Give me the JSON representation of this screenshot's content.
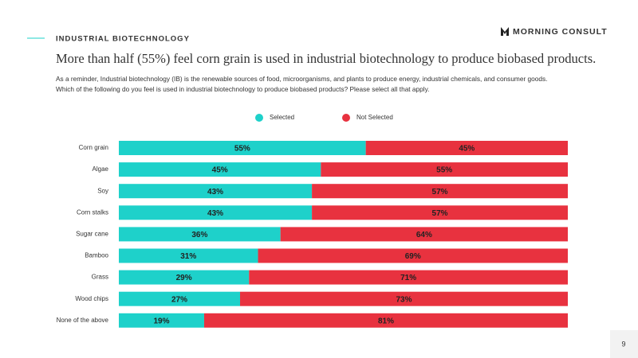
{
  "header": {
    "section": "INDUSTRIAL BIOTECHNOLOGY",
    "brand": "MORNING CONSULT",
    "title": "More than half (55%) feel corn grain is used in industrial biotechnology to produce biobased products.",
    "subtitle": [
      "As a reminder, Industrial biotechnology (IB) is the renewable sources of food, microorganisms, and plants to produce energy, industrial chemicals, and consumer goods.",
      "Which of the following do you feel is used in industrial biotechnology to produce biobased products? Please select all that apply."
    ]
  },
  "page_number": 9,
  "chart_data": {
    "type": "stacked_bar_horizontal",
    "categories": [
      "Corn grain",
      "Algae",
      "Soy",
      "Corn stalks",
      "Sugar cane",
      "Bamboo",
      "Grass",
      "Wood chips",
      "None of the above"
    ],
    "series": [
      {
        "name": "Selected",
        "color": "#1ed1ca",
        "values": [
          55,
          45,
          43,
          43,
          36,
          31,
          29,
          27,
          19
        ],
        "value_labels": [
          "55%",
          "45%",
          "43%",
          "43%",
          "36%",
          "31%",
          "29%",
          "27%",
          "19%"
        ]
      },
      {
        "name": "Not Selected",
        "color": "#e8323f",
        "values": [
          45,
          55,
          57,
          57,
          64,
          69,
          71,
          73,
          81
        ],
        "value_labels": [
          "45%",
          "55%",
          "57%",
          "57%",
          "64%",
          "69%",
          "71%",
          "73%",
          "81%"
        ]
      }
    ],
    "legend": "top"
  }
}
